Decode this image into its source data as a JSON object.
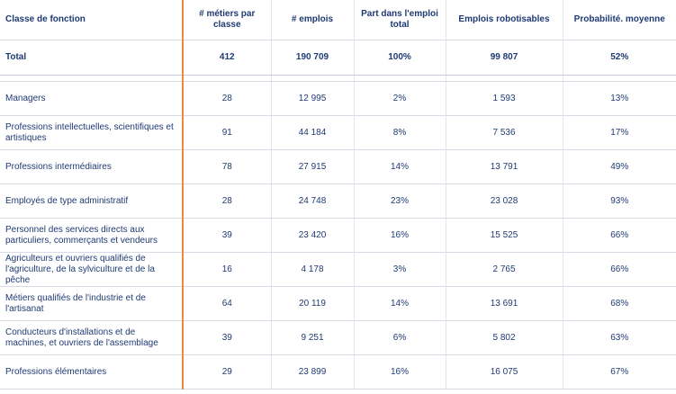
{
  "table": {
    "headers": [
      "Classe de fonction",
      "# métiers par classe",
      "# emplois",
      "Part dans l'emploi total",
      "Emplois robotisables",
      "Probabilité. moyenne"
    ],
    "total": [
      "Total",
      "412",
      "190 709",
      "100%",
      "99 807",
      "52%"
    ],
    "rows": [
      [
        "Managers",
        "28",
        "12 995",
        "2%",
        "1 593",
        "13%"
      ],
      [
        "Professions intellectuelles, scientifiques et artistiques",
        "91",
        "44 184",
        "8%",
        "7 536",
        "17%"
      ],
      [
        "Professions intermédiaires",
        "78",
        "27 915",
        "14%",
        "13 791",
        "49%"
      ],
      [
        "Employés de type administratif",
        "28",
        "24 748",
        "23%",
        "23 028",
        "93%"
      ],
      [
        "Personnel des services directs aux particuliers, commerçants et vendeurs",
        "39",
        "23 420",
        "16%",
        "15 525",
        "66%"
      ],
      [
        "Agriculteurs et ouvriers qualifiés de l'agriculture, de la sylviculture et de la pêche",
        "16",
        "4 178",
        "3%",
        "2 765",
        "66%"
      ],
      [
        "Métiers qualifiés de l'industrie et de l'artisanat",
        "64",
        "20 119",
        "14%",
        "13 691",
        "68%"
      ],
      [
        "Conducteurs d'installations et de machines, et ouvriers de l'assemblage",
        "39",
        "9 251",
        "6%",
        "5 802",
        "63%"
      ],
      [
        "Professions élémentaires",
        "29",
        "23 899",
        "16%",
        "16 075",
        "67%"
      ]
    ]
  },
  "colors": {
    "text": "#1f3a73",
    "accent": "#f0883a",
    "rule": "#d6dbe6"
  }
}
